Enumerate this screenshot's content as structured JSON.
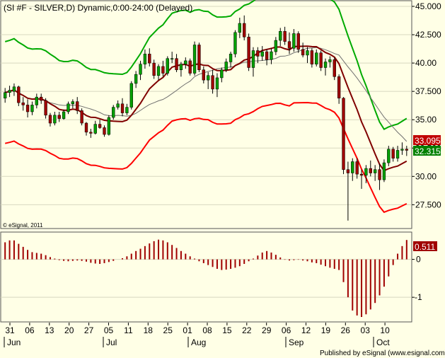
{
  "chart_data": [
    {
      "type": "candlestick",
      "title": "(SI #F - SILVER,D) Dynamic,0:00-24:00 (Delayed)",
      "ylim": [
        25.4,
        45.5
      ],
      "y_ticks": [
        "27.500",
        "30.00",
        "32.500",
        "35.00",
        "37.500",
        "40.00",
        "42.500",
        "45.000"
      ],
      "x_ticks": [
        "31",
        "06",
        "13",
        "20",
        "27",
        "05",
        "11",
        "18",
        "25",
        "01",
        "08",
        "15",
        "22",
        "29",
        "06",
        "12",
        "19",
        "26",
        "03",
        "10"
      ],
      "month_labels": [
        "Jun",
        "Jul",
        "Aug",
        "Sep",
        "Oct"
      ],
      "watermark": "© eSignal, 2011",
      "last_price_label": "32.315",
      "ma_label": "33.095",
      "colors": {
        "up": "#00a000",
        "down": "#a00000",
        "upper_band": "#00aa00",
        "lower_band": "#ff0000",
        "ma": "#800000",
        "mid": "#707070",
        "last_bg": "#008000",
        "ma_bg": "#c00000"
      },
      "candles": [
        [
          36.9,
          37.8,
          36.5,
          37.4
        ],
        [
          37.4,
          38.0,
          37.0,
          37.6
        ],
        [
          37.5,
          38.2,
          37.1,
          37.9
        ],
        [
          37.9,
          38.0,
          36.2,
          36.5
        ],
        [
          36.5,
          37.0,
          35.8,
          36.3
        ],
        [
          36.3,
          36.8,
          35.2,
          35.7
        ],
        [
          35.7,
          36.6,
          35.4,
          36.3
        ],
        [
          36.3,
          37.3,
          36.0,
          37.0
        ],
        [
          37.0,
          37.3,
          36.4,
          36.7
        ],
        [
          36.7,
          36.9,
          35.1,
          35.4
        ],
        [
          35.4,
          35.6,
          34.4,
          34.7
        ],
        [
          34.7,
          35.7,
          34.5,
          35.4
        ],
        [
          35.4,
          35.7,
          34.8,
          35.1
        ],
        [
          35.1,
          35.9,
          35.0,
          35.7
        ],
        [
          35.7,
          36.6,
          35.5,
          36.4
        ],
        [
          36.4,
          36.8,
          36.0,
          36.6
        ],
        [
          36.6,
          37.0,
          35.5,
          35.8
        ],
        [
          35.8,
          36.0,
          34.5,
          34.7
        ],
        [
          34.7,
          34.8,
          33.6,
          33.9
        ],
        [
          33.9,
          34.2,
          33.4,
          33.8
        ],
        [
          33.8,
          34.9,
          33.7,
          34.6
        ],
        [
          34.6,
          35.0,
          34.2,
          34.3
        ],
        [
          34.3,
          34.5,
          33.5,
          33.7
        ],
        [
          33.7,
          35.4,
          33.6,
          35.2
        ],
        [
          35.2,
          36.3,
          35.0,
          36.1
        ],
        [
          36.1,
          36.7,
          35.9,
          36.4
        ],
        [
          36.4,
          36.9,
          35.3,
          35.6
        ],
        [
          35.6,
          36.4,
          35.4,
          36.1
        ],
        [
          36.1,
          38.4,
          35.9,
          38.2
        ],
        [
          38.2,
          39.3,
          37.8,
          39.0
        ],
        [
          39.0,
          40.2,
          38.5,
          39.9
        ],
        [
          39.9,
          41.2,
          39.5,
          40.8
        ],
        [
          40.8,
          41.3,
          39.7,
          40.0
        ],
        [
          40.0,
          40.3,
          38.6,
          38.9
        ],
        [
          38.9,
          39.9,
          38.5,
          39.7
        ],
        [
          39.7,
          40.2,
          38.8,
          39.1
        ],
        [
          39.1,
          40.6,
          38.9,
          40.4
        ],
        [
          40.4,
          41.0,
          40.0,
          40.4
        ],
        [
          40.4,
          40.8,
          39.2,
          39.4
        ],
        [
          39.4,
          40.1,
          38.8,
          39.9
        ],
        [
          39.9,
          40.5,
          39.5,
          40.2
        ],
        [
          40.2,
          40.4,
          38.9,
          39.1
        ],
        [
          39.1,
          41.9,
          38.9,
          41.6
        ],
        [
          41.6,
          41.8,
          39.2,
          39.4
        ],
        [
          39.4,
          39.7,
          38.2,
          38.5
        ],
        [
          38.5,
          39.2,
          37.7,
          38.9
        ],
        [
          38.9,
          39.4,
          37.3,
          37.7
        ],
        [
          37.7,
          39.1,
          37.0,
          38.7
        ],
        [
          38.7,
          39.6,
          38.3,
          39.4
        ],
        [
          39.4,
          40.4,
          39.2,
          40.1
        ],
        [
          40.1,
          41.0,
          39.6,
          40.8
        ],
        [
          40.8,
          42.9,
          40.5,
          42.7
        ],
        [
          42.7,
          44.0,
          42.2,
          43.5
        ],
        [
          43.5,
          44.2,
          42.0,
          42.3
        ],
        [
          42.3,
          42.6,
          39.3,
          39.6
        ],
        [
          39.6,
          41.4,
          38.8,
          41.1
        ],
        [
          41.1,
          41.4,
          40.0,
          40.6
        ],
        [
          40.6,
          41.5,
          40.2,
          41.0
        ],
        [
          41.0,
          41.2,
          39.8,
          40.3
        ],
        [
          40.3,
          41.3,
          39.9,
          41.0
        ],
        [
          41.0,
          42.3,
          40.7,
          42.0
        ],
        [
          42.0,
          43.1,
          41.5,
          42.8
        ],
        [
          42.8,
          43.2,
          41.6,
          41.9
        ],
        [
          41.9,
          42.7,
          40.8,
          41.3
        ],
        [
          41.3,
          43.0,
          41.0,
          42.6
        ],
        [
          42.6,
          42.8,
          40.9,
          41.2
        ],
        [
          41.2,
          41.8,
          40.5,
          40.7
        ],
        [
          40.7,
          41.4,
          40.0,
          41.1
        ],
        [
          41.1,
          41.3,
          39.6,
          39.9
        ],
        [
          39.9,
          41.2,
          39.7,
          40.9
        ],
        [
          40.9,
          41.1,
          39.3,
          39.6
        ],
        [
          39.6,
          40.4,
          38.9,
          40.1
        ],
        [
          40.1,
          40.6,
          39.6,
          40.3
        ],
        [
          40.3,
          40.5,
          38.5,
          38.8
        ],
        [
          38.8,
          39.0,
          36.4,
          36.9
        ],
        [
          36.9,
          37.0,
          30.2,
          30.6
        ],
        [
          30.6,
          31.3,
          26.1,
          30.3
        ],
        [
          30.3,
          31.6,
          29.6,
          31.3
        ],
        [
          31.3,
          31.6,
          29.8,
          30.2
        ],
        [
          30.2,
          30.6,
          28.9,
          30.1
        ],
        [
          30.1,
          31.0,
          29.4,
          30.7
        ],
        [
          30.7,
          31.4,
          30.0,
          30.3
        ],
        [
          30.3,
          31.0,
          29.6,
          30.6
        ],
        [
          30.6,
          31.1,
          28.8,
          29.7
        ],
        [
          29.7,
          31.5,
          29.5,
          31.2
        ],
        [
          31.2,
          32.7,
          30.9,
          32.4
        ],
        [
          32.4,
          32.6,
          31.3,
          31.6
        ],
        [
          31.6,
          32.7,
          31.3,
          32.3
        ],
        [
          32.3,
          33.0,
          31.9,
          32.4
        ],
        [
          32.4,
          32.7,
          31.8,
          32.3
        ]
      ],
      "indicator": {
        "name": "MACD histogram",
        "ylim": [
          -1.65,
          0.72
        ],
        "y_ticks": [
          "-1",
          "0"
        ],
        "last_value_label": "0.511",
        "color": "#a00000",
        "values": [
          0.45,
          0.5,
          0.5,
          0.41,
          0.33,
          0.25,
          0.19,
          0.17,
          0.15,
          0.11,
          0.06,
          0.02,
          -0.02,
          -0.04,
          -0.05,
          -0.04,
          -0.03,
          -0.04,
          -0.06,
          -0.09,
          -0.11,
          -0.12,
          -0.1,
          -0.07,
          -0.04,
          0.0,
          0.03,
          0.08,
          0.15,
          0.22,
          0.28,
          0.35,
          0.42,
          0.48,
          0.52,
          0.5,
          0.45,
          0.38,
          0.3,
          0.22,
          0.15,
          0.08,
          0.02,
          -0.05,
          -0.1,
          -0.15,
          -0.2,
          -0.25,
          -0.28,
          -0.27,
          -0.25,
          -0.22,
          -0.18,
          -0.12,
          -0.05,
          0.02,
          0.1,
          0.18,
          0.22,
          0.18,
          0.12,
          0.05,
          -0.01,
          -0.03,
          -0.02,
          -0.01,
          -0.03,
          -0.05,
          -0.08,
          -0.1,
          -0.14,
          -0.18,
          -0.22,
          -0.25,
          -0.28,
          -0.6,
          -1.0,
          -1.35,
          -1.48,
          -1.52,
          -1.45,
          -1.32,
          -1.15,
          -0.95,
          -0.72,
          -0.45,
          -0.15,
          0.15,
          0.35,
          0.511
        ]
      }
    }
  ],
  "footer": {
    "text": "Published by eSignal (www.esignal.com)"
  }
}
